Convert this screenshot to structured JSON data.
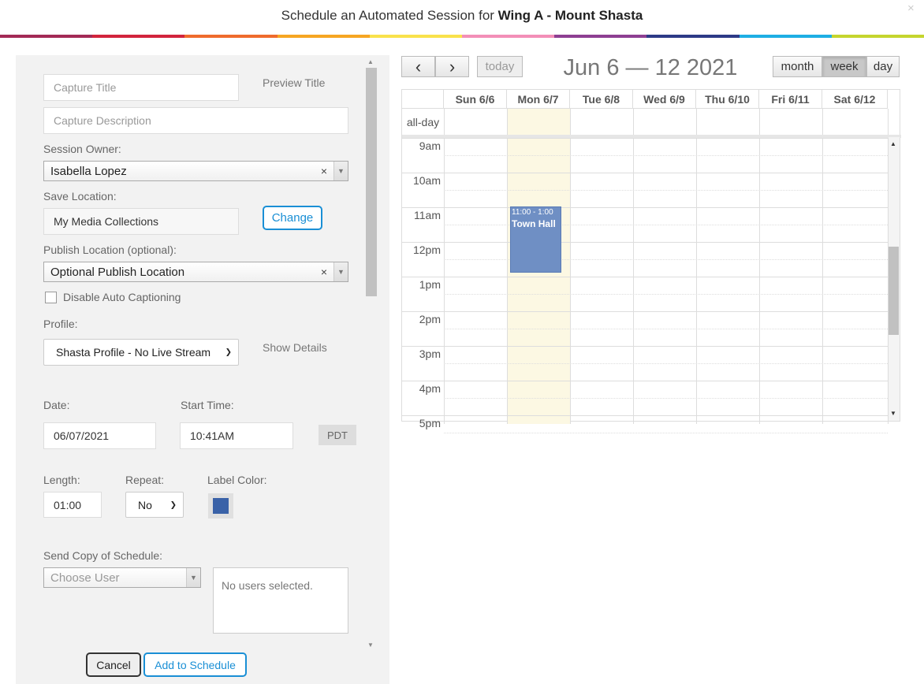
{
  "dialog": {
    "title_prefix": "Schedule an Automated Session for ",
    "title_location": "Wing A - Mount Shasta",
    "close_icon": "×"
  },
  "colors": {
    "rainbow": [
      "#a32a56",
      "#d2243c",
      "#ef6b2d",
      "#f6a623",
      "#f9e24b",
      "#f38fb8",
      "#8e3f92",
      "#2d3a87",
      "#1eaee4",
      "#c5d52e"
    ],
    "accent": "#1a8fd5",
    "event": "#6f8fc4",
    "label_color": "#3a62a8",
    "today_column": "#fcf8e3"
  },
  "form": {
    "capture_title_placeholder": "Capture Title",
    "preview_title_link": "Preview Title",
    "capture_description_placeholder": "Capture Description",
    "session_owner_label": "Session Owner:",
    "session_owner_value": "Isabella Lopez",
    "save_location_label": "Save Location:",
    "save_location_value": "My Media Collections",
    "change_button": "Change",
    "publish_location_label": "Publish Location (optional):",
    "publish_location_value": "Optional Publish Location",
    "disable_captioning_label": "Disable Auto Captioning",
    "profile_label": "Profile:",
    "profile_value": "Shasta Profile - No Live Stream",
    "show_details_link": "Show Details",
    "date_label": "Date:",
    "date_value": "06/07/2021",
    "start_time_label": "Start Time:",
    "start_time_value": "10:41AM",
    "timezone": "PDT",
    "length_label": "Length:",
    "length_value": "01:00",
    "repeat_label": "Repeat:",
    "repeat_value": "No",
    "label_color_label": "Label Color:",
    "send_copy_label": "Send Copy of Schedule:",
    "choose_user_placeholder": "Choose User",
    "users_selected_text": "No users selected.",
    "cancel_button": "Cancel",
    "add_button": "Add to Schedule"
  },
  "calendar": {
    "prev_icon": "‹",
    "next_icon": "›",
    "today_button": "today",
    "title": "Jun 6 — 12 2021",
    "views": [
      "month",
      "week",
      "day"
    ],
    "active_view": "week",
    "days": [
      "Sun 6/6",
      "Mon 6/7",
      "Tue 6/8",
      "Wed 6/9",
      "Thu 6/10",
      "Fri 6/11",
      "Sat 6/12"
    ],
    "today_index": 1,
    "allday_label": "all-day",
    "hours": [
      "9am",
      "10am",
      "11am",
      "12pm",
      "1pm",
      "2pm",
      "3pm",
      "4pm",
      "5pm"
    ],
    "event": {
      "time": "11:00 - 1:00",
      "title": "Town Hall"
    }
  }
}
